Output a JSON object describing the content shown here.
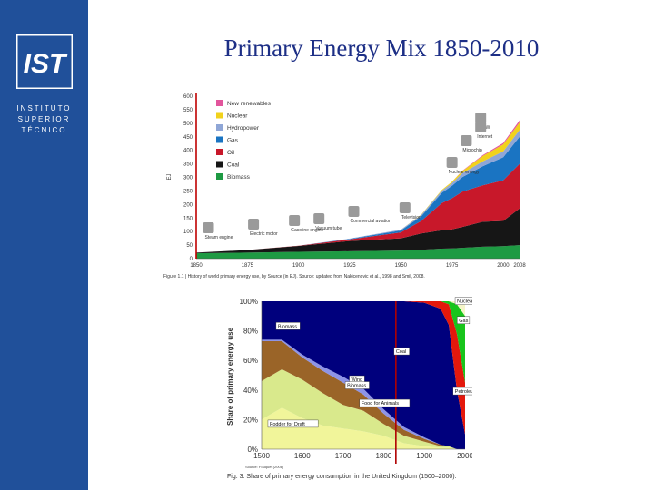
{
  "sidebar": {
    "logo_text": "IST",
    "institution": [
      "INSTITUTO",
      "SUPERIOR",
      "TÉCNICO"
    ],
    "color": "#20509a"
  },
  "slide": {
    "title": "Primary Energy Mix 1850-2010"
  },
  "chart_data": [
    {
      "type": "area",
      "stacked": true,
      "ylabel": "EJ",
      "x_ticks": [
        "1850",
        "1875",
        "1900",
        "1925",
        "1950",
        "1975",
        "2000",
        "2008"
      ],
      "y_ticks": [
        0,
        50,
        100,
        150,
        200,
        250,
        300,
        350,
        400,
        450,
        500,
        550,
        600
      ],
      "xlim": [
        1850,
        2008
      ],
      "ylim": [
        0,
        600
      ],
      "x": [
        1850,
        1875,
        1900,
        1925,
        1950,
        1960,
        1970,
        1975,
        1980,
        1990,
        2000,
        2008
      ],
      "series": [
        {
          "name": "Biomass",
          "color": "#1e9a43",
          "values": [
            20,
            22,
            25,
            27,
            30,
            33,
            37,
            38,
            40,
            44,
            46,
            50
          ]
        },
        {
          "name": "Coal",
          "color": "#161616",
          "values": [
            2,
            10,
            22,
            38,
            45,
            60,
            68,
            70,
            77,
            92,
            93,
            135
          ]
        },
        {
          "name": "Oil",
          "color": "#c8182a",
          "values": [
            0,
            0,
            1,
            6,
            22,
            46,
            100,
            115,
            130,
            135,
            150,
            165
          ]
        },
        {
          "name": "Gas",
          "color": "#1a74c2",
          "values": [
            0,
            0,
            0,
            2,
            7,
            18,
            38,
            46,
            54,
            70,
            85,
            100
          ]
        },
        {
          "name": "Hydropower",
          "color": "#8fa6d6",
          "values": [
            0,
            0,
            0,
            1,
            3,
            5,
            8,
            10,
            14,
            18,
            22,
            25
          ]
        },
        {
          "name": "Nuclear",
          "color": "#f1d21c",
          "values": [
            0,
            0,
            0,
            0,
            0,
            1,
            3,
            5,
            8,
            20,
            26,
            28
          ]
        },
        {
          "name": "New renewables",
          "color": "#e2559c",
          "values": [
            0,
            0,
            0,
            0,
            0,
            0,
            0,
            0,
            1,
            3,
            5,
            8
          ]
        }
      ],
      "annotations": [
        "Steam engine",
        "Electric motor",
        "Gasoline engine",
        "Vacuum tube",
        "Commercial aviation",
        "Television",
        "Nuclear energy",
        "Microchip",
        "WWW",
        "Internet"
      ],
      "caption": "Figure 1.1 | History of world primary energy use, by Source (in EJ). Source: updated from Nakicenovic et al., 1998 and Smil, 2008."
    },
    {
      "type": "area",
      "stacked": true,
      "ylabel": "Share of primary energy use",
      "x_ticks": [
        "1500",
        "1600",
        "1700",
        "1800",
        "1900",
        "2000"
      ],
      "y_ticks": [
        "0%",
        "20%",
        "40%",
        "60%",
        "80%",
        "100%"
      ],
      "xlim": [
        1500,
        2000
      ],
      "ylim": [
        0,
        100
      ],
      "x": [
        1500,
        1550,
        1600,
        1650,
        1700,
        1750,
        1800,
        1850,
        1900,
        1940,
        1960,
        1980,
        2000
      ],
      "series": [
        {
          "name": "Fodder for Draft",
          "color": "#f1f59a",
          "values": [
            20,
            28,
            21,
            16,
            14,
            12,
            9,
            4,
            2,
            1,
            1,
            0,
            0
          ]
        },
        {
          "name": "Food for Animals",
          "color": "#d9e98c",
          "values": [
            26,
            26,
            26,
            22,
            16,
            14,
            8,
            5,
            3,
            1,
            1,
            0,
            0
          ]
        },
        {
          "name": "Biomass",
          "color": "#9a6428",
          "values": [
            27,
            19,
            15,
            15,
            15,
            11,
            7,
            4,
            2,
            1,
            0,
            0,
            0
          ]
        },
        {
          "name": "Wind",
          "color": "#8e94e6",
          "values": [
            1,
            1,
            2,
            3,
            4,
            4,
            3,
            2,
            1,
            0,
            0,
            0,
            0
          ]
        },
        {
          "name": "Coal",
          "color": "#00007d",
          "values": [
            26,
            26,
            36,
            44,
            51,
            59,
            73,
            85,
            91,
            92,
            82,
            40,
            10
          ]
        },
        {
          "name": "Petroleum",
          "color": "#e4180c",
          "values": [
            0,
            0,
            0,
            0,
            0,
            0,
            0,
            0,
            1,
            5,
            14,
            38,
            35
          ]
        },
        {
          "name": "Gas",
          "color": "#18c41c",
          "values": [
            0,
            0,
            0,
            0,
            0,
            0,
            0,
            0,
            0,
            0,
            2,
            20,
            45
          ]
        },
        {
          "name": "Nuclear",
          "color": "#f5f5c8",
          "values": [
            0,
            0,
            0,
            0,
            0,
            0,
            0,
            0,
            0,
            0,
            0,
            2,
            10
          ]
        }
      ],
      "marker_year": 1830,
      "source": "Source: Fouquet (2008)",
      "caption": "Fig. 3. Share of primary energy consumption in the United Kingdom (1500–2000)."
    }
  ]
}
